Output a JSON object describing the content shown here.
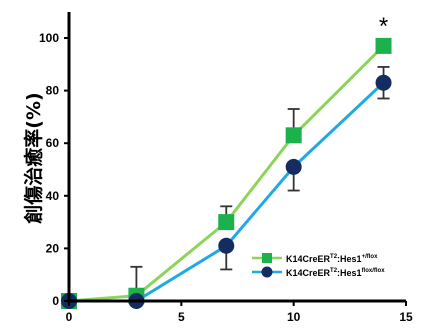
{
  "chart_data": {
    "type": "line",
    "title": "",
    "xlabel": "",
    "ylabel": "創傷治癒率(%)",
    "xlim": [
      0,
      15
    ],
    "ylim": [
      0,
      100
    ],
    "x_ticks": [
      "0",
      "5",
      "10",
      "15"
    ],
    "y_ticks": [
      "0",
      "20",
      "40",
      "60",
      "80",
      "100"
    ],
    "grid": false,
    "legend_position": "bottom-right",
    "annotation": "*",
    "annotation_x": 14,
    "series": [
      {
        "name_main": "K14CreER",
        "name_sup1": "T2",
        "name_mid": ":Hes1",
        "name_sup2": "+/flox",
        "color": "#8ed45a",
        "marker_color": "#1db14b",
        "marker": "square",
        "x": [
          0,
          3,
          7,
          10,
          14
        ],
        "y": [
          0,
          2,
          30,
          63,
          97
        ],
        "error": [
          0,
          0,
          0,
          0,
          0
        ],
        "error_dir": "up",
        "error_up": [
          0,
          11,
          6,
          10,
          2
        ],
        "error_down": [
          0,
          0,
          0,
          0,
          0
        ]
      },
      {
        "name_main": "K14CreER",
        "name_sup1": "T2",
        "name_mid": ":Hes1",
        "name_sup2": "flox/flox",
        "color": "#1fa9e6",
        "marker_color": "#142c5f",
        "marker": "circle",
        "x": [
          0,
          3,
          7,
          10,
          14
        ],
        "y": [
          0,
          0,
          21,
          51,
          83
        ],
        "error_up": [
          0,
          0,
          0,
          0,
          6
        ],
        "error_down": [
          0,
          0,
          9,
          9,
          6
        ]
      }
    ]
  }
}
